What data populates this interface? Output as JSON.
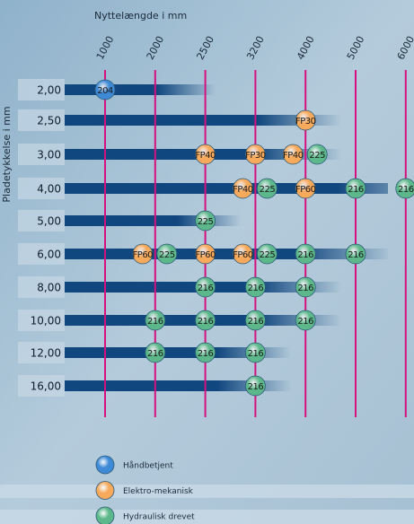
{
  "x_axis_title": "Nyttelængde i mm",
  "y_axis_title": "Pladetykkelse i mm",
  "columns": [
    "1000",
    "2000",
    "2500",
    "3200",
    "4000",
    "5000",
    "6000"
  ],
  "legend": [
    {
      "label": "Håndbetjent",
      "color": "#3f8ad6"
    },
    {
      "label": "Elektro-mekanisk",
      "color": "#f7a95c"
    },
    {
      "label": "Hydraulisk drevet",
      "color": "#5cb88a"
    }
  ],
  "rows": [
    {
      "label": "2,00",
      "markers": [
        {
          "label": "204",
          "type": "Håndbetjent",
          "column": "1000"
        }
      ]
    },
    {
      "label": "2,50",
      "markers": [
        {
          "label": "FP30",
          "type": "Elektro-mekanisk",
          "column": "4000"
        }
      ]
    },
    {
      "label": "3,00",
      "markers": [
        {
          "label": "FP40",
          "type": "Elektro-mekanisk",
          "column": "2500"
        },
        {
          "label": "FP30",
          "type": "Elektro-mekanisk",
          "column": "3200"
        },
        {
          "label": "FP40",
          "type": "Elektro-mekanisk",
          "column": "4000"
        },
        {
          "label": "225",
          "type": "Hydraulisk drevet",
          "column": "4000"
        }
      ]
    },
    {
      "label": "4,00",
      "markers": [
        {
          "label": "FP40",
          "type": "Elektro-mekanisk",
          "column": "3200"
        },
        {
          "label": "225",
          "type": "Hydraulisk drevet",
          "column": "3200"
        },
        {
          "label": "FP60",
          "type": "Elektro-mekanisk",
          "column": "4000"
        },
        {
          "label": "216",
          "type": "Hydraulisk drevet",
          "column": "5000"
        },
        {
          "label": "216",
          "type": "Hydraulisk drevet",
          "column": "6000"
        }
      ]
    },
    {
      "label": "5,00",
      "markers": [
        {
          "label": "225",
          "type": "Hydraulisk drevet",
          "column": "2500"
        }
      ]
    },
    {
      "label": "6,00",
      "markers": [
        {
          "label": "FP60",
          "type": "Elektro-mekanisk",
          "column": "2000"
        },
        {
          "label": "225",
          "type": "Hydraulisk drevet",
          "column": "2000"
        },
        {
          "label": "FP60",
          "type": "Elektro-mekanisk",
          "column": "2500"
        },
        {
          "label": "FP60",
          "type": "Elektro-mekanisk",
          "column": "3200"
        },
        {
          "label": "225",
          "type": "Hydraulisk drevet",
          "column": "3200"
        },
        {
          "label": "216",
          "type": "Hydraulisk drevet",
          "column": "4000"
        },
        {
          "label": "216",
          "type": "Hydraulisk drevet",
          "column": "5000"
        }
      ]
    },
    {
      "label": "8,00",
      "markers": [
        {
          "label": "216",
          "type": "Hydraulisk drevet",
          "column": "2500"
        },
        {
          "label": "216",
          "type": "Hydraulisk drevet",
          "column": "3200"
        },
        {
          "label": "216",
          "type": "Hydraulisk drevet",
          "column": "4000"
        }
      ]
    },
    {
      "label": "10,00",
      "markers": [
        {
          "label": "216",
          "type": "Hydraulisk drevet",
          "column": "2000"
        },
        {
          "label": "216",
          "type": "Hydraulisk drevet",
          "column": "2500"
        },
        {
          "label": "216",
          "type": "Hydraulisk drevet",
          "column": "3200"
        },
        {
          "label": "216",
          "type": "Hydraulisk drevet",
          "column": "4000"
        }
      ]
    },
    {
      "label": "12,00",
      "markers": [
        {
          "label": "216",
          "type": "Hydraulisk drevet",
          "column": "2000"
        },
        {
          "label": "216",
          "type": "Hydraulisk drevet",
          "column": "2500"
        },
        {
          "label": "216",
          "type": "Hydraulisk drevet",
          "column": "3200"
        }
      ]
    },
    {
      "label": "16,00",
      "markers": [
        {
          "label": "216",
          "type": "Hydraulisk drevet",
          "column": "3200"
        }
      ]
    }
  ]
}
